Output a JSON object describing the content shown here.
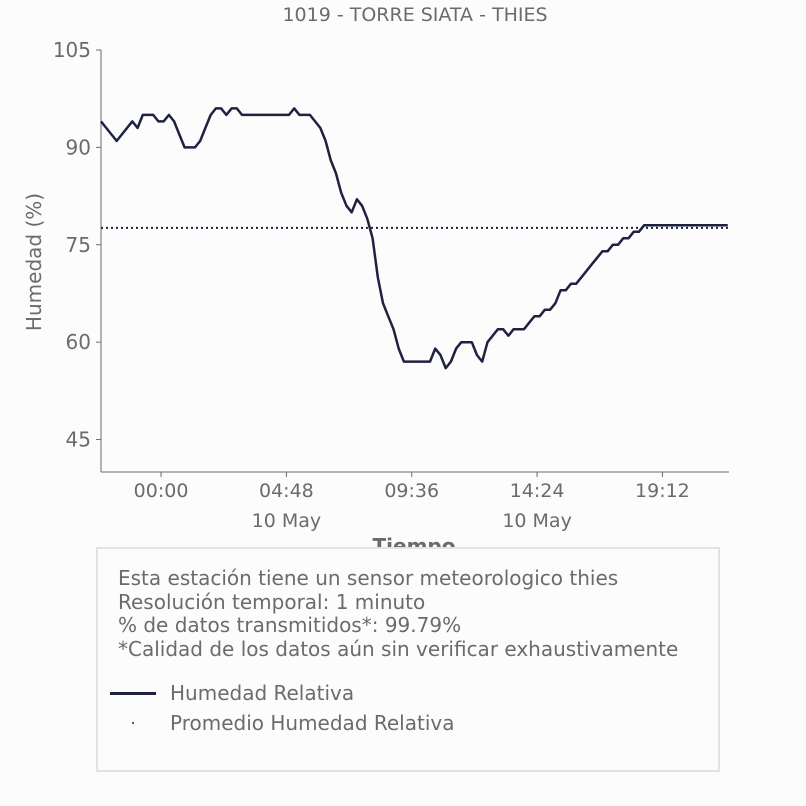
{
  "chart_data": {
    "type": "line",
    "title": "1019 - TORRE SIATA - THIES",
    "xlabel": "Tiempo",
    "ylabel": "Humedad (%)",
    "ylim": [
      40,
      105
    ],
    "yticks": [
      "45",
      "60",
      "75",
      "90",
      "105"
    ],
    "xticks": [
      {
        "label": "00:00",
        "sublabel": ""
      },
      {
        "label": "04:48",
        "sublabel": "10 May"
      },
      {
        "label": "09:36",
        "sublabel": ""
      },
      {
        "label": "14:24",
        "sublabel": "10 May"
      },
      {
        "label": "19:12",
        "sublabel": ""
      }
    ],
    "xlim_hours": [
      -2.3,
      21.75
    ],
    "average": 77.6,
    "series": [
      {
        "name": "Humedad Relativa",
        "color": "#1f2140",
        "x_hours": [
          -2.3,
          -2.1,
          -1.9,
          -1.7,
          -1.5,
          -1.3,
          -1.1,
          -0.9,
          -0.7,
          -0.5,
          -0.3,
          -0.1,
          0.1,
          0.3,
          0.5,
          0.7,
          0.9,
          1.1,
          1.3,
          1.5,
          1.7,
          1.9,
          2.1,
          2.3,
          2.5,
          2.7,
          2.9,
          3.1,
          3.3,
          3.5,
          3.7,
          3.9,
          4.1,
          4.3,
          4.5,
          4.7,
          4.9,
          5.1,
          5.3,
          5.5,
          5.7,
          5.9,
          6.1,
          6.3,
          6.5,
          6.7,
          6.9,
          7.1,
          7.3,
          7.5,
          7.7,
          7.9,
          8.1,
          8.3,
          8.5,
          8.7,
          8.9,
          9.1,
          9.3,
          9.5,
          9.7,
          9.9,
          10.1,
          10.3,
          10.5,
          10.7,
          10.9,
          11.1,
          11.3,
          11.5,
          11.7,
          11.9,
          12.1,
          12.3,
          12.5,
          12.7,
          12.9,
          13.1,
          13.3,
          13.5,
          13.7,
          13.9,
          14.1,
          14.3,
          14.5,
          14.7,
          14.9,
          15.1,
          15.3,
          15.5,
          15.7,
          15.9,
          16.1,
          16.3,
          16.5,
          16.7,
          16.9,
          17.1,
          17.3,
          17.5,
          17.7,
          17.9,
          18.1,
          18.3,
          18.5,
          18.7,
          18.9,
          19.1,
          19.3,
          19.5,
          19.7,
          19.9,
          20.1,
          20.3,
          20.5,
          20.7,
          20.9,
          21.1,
          21.3,
          21.5,
          21.7
        ],
        "values": [
          94,
          93,
          92,
          91,
          92,
          93,
          94,
          93,
          95,
          95,
          95,
          94,
          94,
          95,
          94,
          92,
          90,
          90,
          90,
          91,
          93,
          95,
          96,
          96,
          95,
          96,
          96,
          95,
          95,
          95,
          95,
          95,
          95,
          95,
          95,
          95,
          95,
          96,
          95,
          95,
          95,
          94,
          93,
          91,
          88,
          86,
          83,
          81,
          80,
          82,
          81,
          79,
          76,
          70,
          66,
          64,
          62,
          59,
          57,
          57,
          57,
          57,
          57,
          57,
          59,
          58,
          56,
          57,
          59,
          60,
          60,
          60,
          58,
          57,
          60,
          61,
          62,
          62,
          61,
          62,
          62,
          62,
          63,
          64,
          64,
          65,
          65,
          66,
          68,
          68,
          69,
          69,
          70,
          71,
          72,
          73,
          74,
          74,
          75,
          75,
          76,
          76,
          77,
          77,
          78,
          78,
          78,
          78,
          78,
          78,
          78,
          78,
          78,
          78,
          78,
          78,
          78,
          78,
          78,
          78,
          78
        ]
      },
      {
        "name": "Promedio Humedad Relativa",
        "color": "#1f2140"
      }
    ]
  },
  "info": {
    "line1": "Esta estación tiene un sensor meteorologico thies",
    "line2": "Resolución temporal: 1 minuto",
    "line3": "% de datos transmitidos*: 99.79%",
    "line4": "*Calidad de los datos aún sin verificar exhaustivamente"
  },
  "legend": {
    "line_label": "Humedad Relativa",
    "avg_label": "Promedio Humedad Relativa"
  }
}
